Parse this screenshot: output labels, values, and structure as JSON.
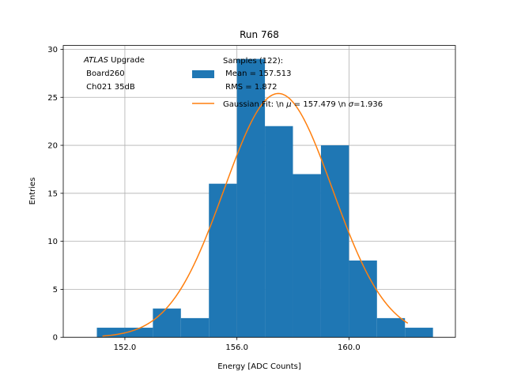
{
  "chart_data": {
    "type": "bar",
    "title": "Run 768",
    "xlabel": "Energy [ADC Counts]",
    "ylabel": "Entries",
    "xlim": [
      149.8,
      163.8
    ],
    "ylim": [
      0,
      30.4
    ],
    "xticks": [
      152.0,
      156.0,
      160.0
    ],
    "xtick_labels": [
      "152.0",
      "156.0",
      "160.0"
    ],
    "yticks": [
      0,
      5,
      10,
      15,
      20,
      25,
      30
    ],
    "ytick_labels": [
      "0",
      "5",
      "10",
      "15",
      "20",
      "25",
      "30"
    ],
    "grid": true,
    "bins": [
      {
        "x0": 151.0,
        "x1": 152.0,
        "count": 1
      },
      {
        "x0": 152.0,
        "x1": 153.0,
        "count": 1
      },
      {
        "x0": 153.0,
        "x1": 154.0,
        "count": 3
      },
      {
        "x0": 154.0,
        "x1": 155.0,
        "count": 2
      },
      {
        "x0": 155.0,
        "x1": 156.0,
        "count": 16
      },
      {
        "x0": 156.0,
        "x1": 157.0,
        "count": 29
      },
      {
        "x0": 157.0,
        "x1": 158.0,
        "count": 22
      },
      {
        "x0": 158.0,
        "x1": 159.0,
        "count": 17
      },
      {
        "x0": 159.0,
        "x1": 160.0,
        "count": 20
      },
      {
        "x0": 160.0,
        "x1": 161.0,
        "count": 8
      },
      {
        "x0": 161.0,
        "x1": 162.0,
        "count": 2
      },
      {
        "x0": 162.0,
        "x1": 163.0,
        "count": 1
      }
    ],
    "fit": {
      "amplitude": 25.4,
      "mean": 157.479,
      "sigma": 1.936,
      "x_range": [
        151.2,
        162.1
      ]
    },
    "colors": {
      "bars": "#1f77b4",
      "fit": "#ff7f0e",
      "grid": "#b0b0b0"
    },
    "annotation": {
      "italic": "ATLAS",
      "line1_rest": " Upgrade",
      "line2": " Board260",
      "line3": " Ch021 35dB"
    },
    "legend": {
      "placement": "top-right",
      "hist_lines": [
        "Samples (122):",
        " Mean = 157.513",
        " RMS = 1.872"
      ],
      "fit_label": "Gaussian Fit: \\n $\\mu$ = 157.479 \\n $\\sigma$=1.936",
      "fit_label_parts": [
        "Gaussian Fit: \\n ",
        "μ",
        " = 157.479 \\n ",
        "σ",
        "=1.936"
      ]
    }
  }
}
